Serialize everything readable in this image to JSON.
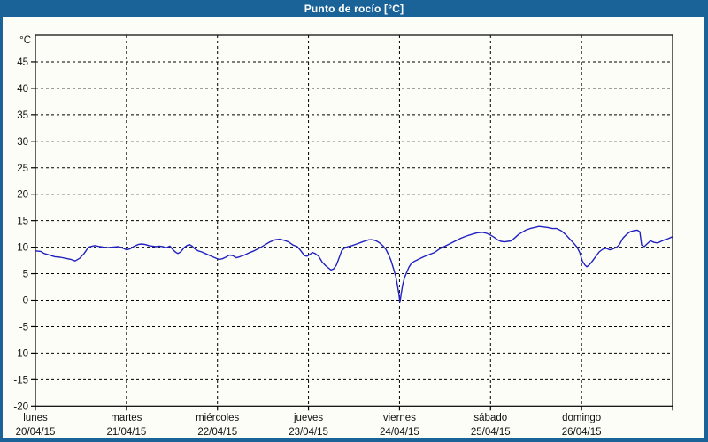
{
  "title": "Punto de rocío [°C]",
  "colors": {
    "frame": "#1a6398",
    "title_text": "#ffffff",
    "canvas_bg": "#fcfdf7",
    "axis": "#000000",
    "grid": "#000000",
    "label_text": "#111111",
    "line": "#2121c2"
  },
  "chart_data": {
    "type": "line",
    "title": "Punto de rocío [°C]",
    "ylabel": "°C",
    "xlabel": "",
    "grid": "dashed",
    "legend": "none",
    "y_axis": {
      "min": -20,
      "max": 50,
      "tick_step": 5,
      "ticks": [
        45,
        40,
        35,
        30,
        25,
        20,
        15,
        10,
        5,
        0,
        -5,
        -10,
        -15,
        -20
      ],
      "unit_label": "°C"
    },
    "x_axis": {
      "range_days": 7,
      "day_labels": [
        {
          "name": "lunes",
          "date": "20/04/15"
        },
        {
          "name": "martes",
          "date": "21/04/15"
        },
        {
          "name": "miércoles",
          "date": "22/04/15"
        },
        {
          "name": "jueves",
          "date": "23/04/15"
        },
        {
          "name": "viernes",
          "date": "24/04/15"
        },
        {
          "name": "sábado",
          "date": "25/04/15"
        },
        {
          "name": "domingo",
          "date": "26/04/15"
        }
      ]
    },
    "series": [
      {
        "name": "Punto de rocío",
        "color": "#2121c2",
        "points_x_unit": "days_since_monday_00h",
        "points": [
          [
            0.0,
            9.3
          ],
          [
            0.058,
            9.2
          ],
          [
            0.097,
            8.8
          ],
          [
            0.156,
            8.5
          ],
          [
            0.214,
            8.2
          ],
          [
            0.272,
            8.1
          ],
          [
            0.331,
            7.9
          ],
          [
            0.389,
            7.7
          ],
          [
            0.437,
            7.4
          ],
          [
            0.486,
            7.9
          ],
          [
            0.535,
            8.8
          ],
          [
            0.583,
            10.0
          ],
          [
            0.651,
            10.3
          ],
          [
            0.71,
            10.1
          ],
          [
            0.778,
            9.9
          ],
          [
            0.846,
            10.0
          ],
          [
            0.914,
            10.1
          ],
          [
            0.963,
            9.8
          ],
          [
            1.001,
            9.5
          ],
          [
            1.04,
            9.7
          ],
          [
            1.079,
            10.1
          ],
          [
            1.128,
            10.5
          ],
          [
            1.167,
            10.6
          ],
          [
            1.206,
            10.5
          ],
          [
            1.244,
            10.3
          ],
          [
            1.283,
            10.2
          ],
          [
            1.322,
            10.1
          ],
          [
            1.361,
            10.2
          ],
          [
            1.4,
            10.1
          ],
          [
            1.439,
            9.9
          ],
          [
            1.478,
            10.2
          ],
          [
            1.507,
            9.6
          ],
          [
            1.536,
            9.1
          ],
          [
            1.565,
            8.8
          ],
          [
            1.595,
            9.1
          ],
          [
            1.633,
            9.9
          ],
          [
            1.663,
            10.3
          ],
          [
            1.692,
            10.5
          ],
          [
            1.721,
            10.2
          ],
          [
            1.75,
            9.7
          ],
          [
            1.789,
            9.3
          ],
          [
            1.828,
            9.1
          ],
          [
            1.867,
            8.8
          ],
          [
            1.906,
            8.5
          ],
          [
            1.944,
            8.2
          ],
          [
            1.974,
            8.0
          ],
          [
            2.013,
            7.7
          ],
          [
            2.051,
            7.8
          ],
          [
            2.09,
            8.1
          ],
          [
            2.129,
            8.5
          ],
          [
            2.168,
            8.4
          ],
          [
            2.207,
            8.0
          ],
          [
            2.246,
            8.2
          ],
          [
            2.294,
            8.5
          ],
          [
            2.343,
            8.9
          ],
          [
            2.401,
            9.3
          ],
          [
            2.46,
            9.8
          ],
          [
            2.518,
            10.4
          ],
          [
            2.576,
            11.0
          ],
          [
            2.635,
            11.4
          ],
          [
            2.683,
            11.5
          ],
          [
            2.732,
            11.3
          ],
          [
            2.781,
            11.0
          ],
          [
            2.829,
            10.4
          ],
          [
            2.878,
            10.1
          ],
          [
            2.917,
            9.3
          ],
          [
            2.956,
            8.4
          ],
          [
            2.985,
            8.3
          ],
          [
            3.014,
            8.6
          ],
          [
            3.043,
            9.0
          ],
          [
            3.072,
            8.8
          ],
          [
            3.111,
            8.3
          ],
          [
            3.15,
            7.2
          ],
          [
            3.189,
            6.5
          ],
          [
            3.218,
            6.1
          ],
          [
            3.247,
            5.7
          ],
          [
            3.276,
            5.9
          ],
          [
            3.306,
            6.6
          ],
          [
            3.335,
            7.9
          ],
          [
            3.364,
            9.3
          ],
          [
            3.393,
            9.8
          ],
          [
            3.432,
            10.1
          ],
          [
            3.481,
            10.3
          ],
          [
            3.529,
            10.6
          ],
          [
            3.578,
            10.9
          ],
          [
            3.626,
            11.2
          ],
          [
            3.665,
            11.4
          ],
          [
            3.704,
            11.4
          ],
          [
            3.743,
            11.2
          ],
          [
            3.782,
            10.8
          ],
          [
            3.821,
            10.2
          ],
          [
            3.85,
            9.6
          ],
          [
            3.879,
            8.6
          ],
          [
            3.908,
            7.4
          ],
          [
            3.937,
            5.8
          ],
          [
            3.957,
            4.6
          ],
          [
            3.976,
            2.9
          ],
          [
            3.996,
            0.8
          ],
          [
            4.005,
            -0.4
          ],
          [
            4.015,
            0.8
          ],
          [
            4.034,
            2.8
          ],
          [
            4.054,
            4.2
          ],
          [
            4.073,
            5.0
          ],
          [
            4.103,
            6.2
          ],
          [
            4.132,
            7.0
          ],
          [
            4.171,
            7.4
          ],
          [
            4.219,
            7.8
          ],
          [
            4.268,
            8.2
          ],
          [
            4.326,
            8.6
          ],
          [
            4.385,
            9.0
          ],
          [
            4.443,
            9.7
          ],
          [
            4.501,
            10.2
          ],
          [
            4.56,
            10.7
          ],
          [
            4.618,
            11.2
          ],
          [
            4.676,
            11.7
          ],
          [
            4.735,
            12.1
          ],
          [
            4.793,
            12.4
          ],
          [
            4.851,
            12.7
          ],
          [
            4.91,
            12.8
          ],
          [
            4.958,
            12.6
          ],
          [
            4.997,
            12.3
          ],
          [
            5.036,
            11.9
          ],
          [
            5.075,
            11.4
          ],
          [
            5.114,
            11.1
          ],
          [
            5.153,
            11.0
          ],
          [
            5.192,
            11.1
          ],
          [
            5.23,
            11.2
          ],
          [
            5.269,
            11.8
          ],
          [
            5.308,
            12.4
          ],
          [
            5.347,
            12.8
          ],
          [
            5.386,
            13.2
          ],
          [
            5.435,
            13.5
          ],
          [
            5.483,
            13.7
          ],
          [
            5.532,
            13.9
          ],
          [
            5.58,
            13.8
          ],
          [
            5.629,
            13.7
          ],
          [
            5.678,
            13.5
          ],
          [
            5.727,
            13.5
          ],
          [
            5.775,
            13.1
          ],
          [
            5.824,
            12.4
          ],
          [
            5.872,
            11.5
          ],
          [
            5.911,
            10.8
          ],
          [
            5.95,
            10.0
          ],
          [
            5.979,
            9.0
          ],
          [
            6.008,
            7.4
          ],
          [
            6.038,
            6.6
          ],
          [
            6.057,
            6.3
          ],
          [
            6.086,
            6.7
          ],
          [
            6.115,
            7.3
          ],
          [
            6.154,
            8.2
          ],
          [
            6.193,
            9.1
          ],
          [
            6.232,
            9.6
          ],
          [
            6.271,
            9.8
          ],
          [
            6.31,
            9.5
          ],
          [
            6.348,
            9.7
          ],
          [
            6.387,
            10.0
          ],
          [
            6.417,
            10.5
          ],
          [
            6.455,
            11.7
          ],
          [
            6.494,
            12.4
          ],
          [
            6.533,
            12.9
          ],
          [
            6.572,
            13.1
          ],
          [
            6.611,
            13.2
          ],
          [
            6.64,
            12.9
          ],
          [
            6.66,
            10.4
          ],
          [
            6.689,
            10.1
          ],
          [
            6.718,
            10.6
          ],
          [
            6.757,
            11.2
          ],
          [
            6.796,
            10.9
          ],
          [
            6.835,
            10.8
          ],
          [
            6.874,
            11.1
          ],
          [
            6.913,
            11.4
          ],
          [
            6.951,
            11.6
          ],
          [
            6.99,
            11.9
          ]
        ]
      }
    ]
  }
}
